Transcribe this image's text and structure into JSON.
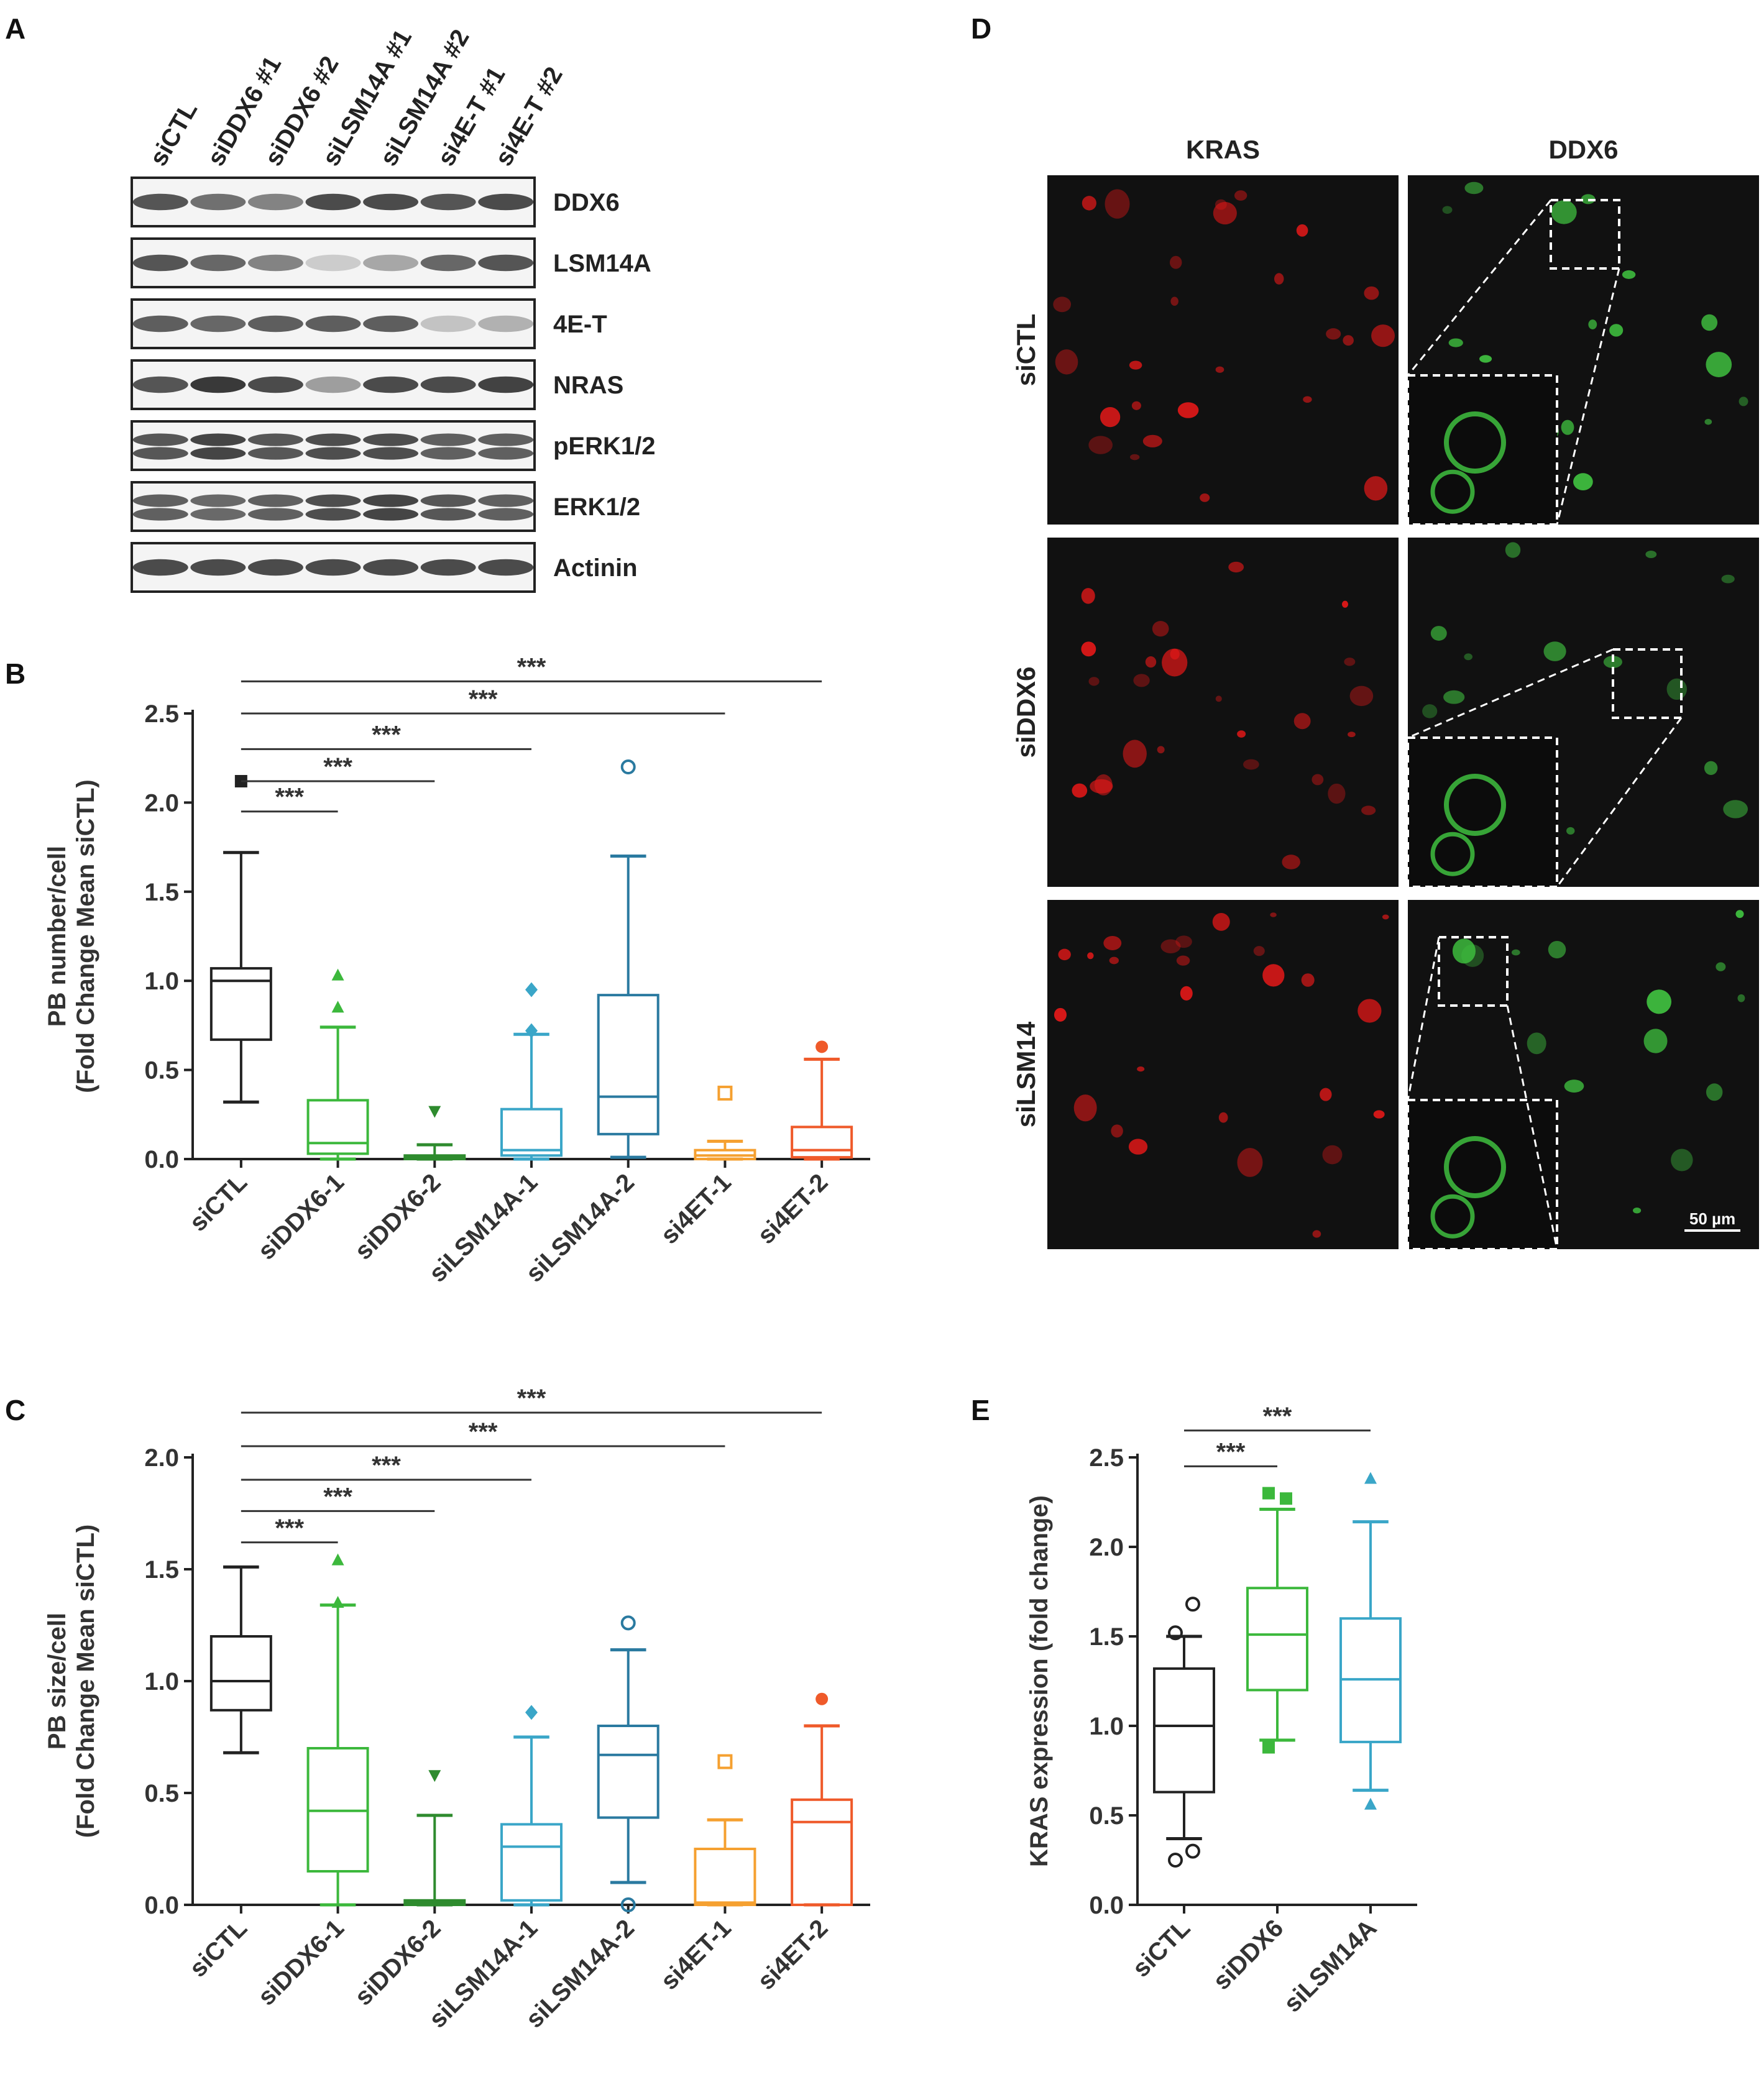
{
  "panels": {
    "A": "A",
    "B": "B",
    "C": "C",
    "D": "D",
    "E": "E"
  },
  "western_blot": {
    "lanes": [
      "siCTL",
      "siDDX6 #1",
      "siDDX6 #2",
      "siLSM14A #1",
      "siLSM14A #2",
      "si4E-T #1",
      "si4E-T #2"
    ],
    "rows": [
      {
        "label": "DDX6",
        "intensity": [
          0.8,
          0.65,
          0.55,
          0.85,
          0.85,
          0.8,
          0.85
        ]
      },
      {
        "label": "LSM14A",
        "intensity": [
          0.8,
          0.7,
          0.55,
          0.15,
          0.35,
          0.7,
          0.8
        ]
      },
      {
        "label": "4E-T",
        "intensity": [
          0.75,
          0.7,
          0.75,
          0.75,
          0.75,
          0.2,
          0.3
        ]
      },
      {
        "label": "NRAS",
        "intensity": [
          0.8,
          0.95,
          0.85,
          0.4,
          0.85,
          0.85,
          0.9
        ]
      },
      {
        "label": "pERK1/2",
        "intensity": [
          0.8,
          0.9,
          0.8,
          0.85,
          0.85,
          0.75,
          0.75
        ]
      },
      {
        "label": "ERK1/2",
        "intensity": [
          0.75,
          0.7,
          0.75,
          0.85,
          0.9,
          0.8,
          0.75
        ]
      },
      {
        "label": "Actinin",
        "intensity": [
          0.85,
          0.85,
          0.85,
          0.85,
          0.85,
          0.85,
          0.85
        ]
      }
    ]
  },
  "micrographs": {
    "columns": [
      "KRAS",
      "DDX6"
    ],
    "rows": [
      "siCTL",
      "siDDX6",
      "siLSM14"
    ],
    "scale_bar": "50 µm",
    "colors": {
      "kras": "#e01818",
      "ddx6": "#3fbf3f",
      "bg": "#111111"
    }
  },
  "chart_data": [
    {
      "type": "box",
      "panel": "B",
      "ylabel_line1": "PB number/cell",
      "ylabel_line2": "(Fold Change Mean siCTL)",
      "ylim": [
        0,
        2.5
      ],
      "yticks": [
        "0.0",
        "0.5",
        "1.0",
        "1.5",
        "2.0",
        "2.5"
      ],
      "categories": [
        "siCTL",
        "siDDX6-1",
        "siDDX6-2",
        "siLSM14A-1",
        "siLSM14A-2",
        "si4ET-1",
        "si4ET-2"
      ],
      "colors": [
        "#222222",
        "#3cb83c",
        "#2e8b2e",
        "#3aa6c8",
        "#2a7aa0",
        "#f5a030",
        "#ef5a2a"
      ],
      "boxes": [
        {
          "min": 0.32,
          "q1": 0.67,
          "median": 1.0,
          "q3": 1.07,
          "max": 1.72,
          "outliers": [
            2.12
          ],
          "marker": "square"
        },
        {
          "min": 0.0,
          "q1": 0.03,
          "median": 0.09,
          "q3": 0.33,
          "max": 0.74,
          "outliers": [
            0.85,
            1.03
          ],
          "marker": "triangle"
        },
        {
          "min": 0.0,
          "q1": 0.0,
          "median": 0.01,
          "q3": 0.02,
          "max": 0.08,
          "outliers": [
            0.27
          ],
          "marker": "tri-down"
        },
        {
          "min": 0.0,
          "q1": 0.02,
          "median": 0.05,
          "q3": 0.28,
          "max": 0.7,
          "outliers": [
            0.72,
            0.95
          ],
          "marker": "diamond"
        },
        {
          "min": 0.01,
          "q1": 0.14,
          "median": 0.35,
          "q3": 0.92,
          "max": 1.7,
          "outliers": [
            2.2
          ],
          "marker": "circle"
        },
        {
          "min": 0.0,
          "q1": 0.0,
          "median": 0.02,
          "q3": 0.05,
          "max": 0.1,
          "outliers": [
            0.37
          ],
          "marker": "open-square"
        },
        {
          "min": 0.0,
          "q1": 0.01,
          "median": 0.05,
          "q3": 0.18,
          "max": 0.56,
          "outliers": [
            0.63
          ],
          "marker": "hexagon"
        }
      ],
      "significance": [
        {
          "from": 0,
          "to": 1,
          "label": "***",
          "y": 1.95
        },
        {
          "from": 0,
          "to": 2,
          "label": "***",
          "y": 2.12
        },
        {
          "from": 0,
          "to": 3,
          "label": "***",
          "y": 2.3
        },
        {
          "from": 0,
          "to": 5,
          "label": "***",
          "y": 2.5
        },
        {
          "from": 0,
          "to": 6,
          "label": "***",
          "y": 2.68
        }
      ]
    },
    {
      "type": "box",
      "panel": "C",
      "ylabel_line1": "PB size/cell",
      "ylabel_line2": "(Fold Change Mean siCTL)",
      "ylim": [
        0,
        2.0
      ],
      "yticks": [
        "0.0",
        "0.5",
        "1.0",
        "1.5",
        "2.0"
      ],
      "categories": [
        "siCTL",
        "siDDX6-1",
        "siDDX6-2",
        "siLSM14A-1",
        "siLSM14A-2",
        "si4ET-1",
        "si4ET-2"
      ],
      "colors": [
        "#222222",
        "#3cb83c",
        "#2e8b2e",
        "#3aa6c8",
        "#2a7aa0",
        "#f5a030",
        "#ef5a2a"
      ],
      "boxes": [
        {
          "min": 0.68,
          "q1": 0.87,
          "median": 1.0,
          "q3": 1.2,
          "max": 1.51,
          "outliers": [],
          "marker": "square"
        },
        {
          "min": 0.0,
          "q1": 0.15,
          "median": 0.42,
          "q3": 0.7,
          "max": 1.34,
          "outliers": [
            1.35,
            1.54
          ],
          "marker": "triangle"
        },
        {
          "min": 0.0,
          "q1": 0.0,
          "median": 0.01,
          "q3": 0.02,
          "max": 0.4,
          "outliers": [
            0.58
          ],
          "marker": "tri-down"
        },
        {
          "min": 0.0,
          "q1": 0.02,
          "median": 0.26,
          "q3": 0.36,
          "max": 0.75,
          "outliers": [
            0.86
          ],
          "marker": "diamond"
        },
        {
          "min": 0.1,
          "q1": 0.39,
          "median": 0.67,
          "q3": 0.8,
          "max": 1.14,
          "outliers": [
            0.0,
            1.26
          ],
          "marker": "circle"
        },
        {
          "min": 0.0,
          "q1": 0.0,
          "median": 0.01,
          "q3": 0.25,
          "max": 0.38,
          "outliers": [
            0.64
          ],
          "marker": "open-square"
        },
        {
          "min": 0.0,
          "q1": 0.0,
          "median": 0.37,
          "q3": 0.47,
          "max": 0.8,
          "outliers": [
            0.92
          ],
          "marker": "hexagon"
        }
      ],
      "significance": [
        {
          "from": 0,
          "to": 1,
          "label": "***",
          "y": 1.62
        },
        {
          "from": 0,
          "to": 2,
          "label": "***",
          "y": 1.76
        },
        {
          "from": 0,
          "to": 3,
          "label": "***",
          "y": 1.9
        },
        {
          "from": 0,
          "to": 5,
          "label": "***",
          "y": 2.05
        },
        {
          "from": 0,
          "to": 6,
          "label": "***",
          "y": 2.2
        }
      ]
    },
    {
      "type": "box",
      "panel": "E",
      "ylabel_line1": "KRAS expression (fold change)",
      "ylabel_line2": "",
      "ylim": [
        0,
        2.5
      ],
      "yticks": [
        "0.0",
        "0.5",
        "1.0",
        "1.5",
        "2.0",
        "2.5"
      ],
      "categories": [
        "siCTL",
        "siDDX6",
        "siLSM14A"
      ],
      "colors": [
        "#222222",
        "#3cb83c",
        "#3aa6c8"
      ],
      "boxes": [
        {
          "min": 0.37,
          "q1": 0.63,
          "median": 1.0,
          "q3": 1.32,
          "max": 1.5,
          "outliers": [
            0.25,
            0.3,
            1.52,
            1.68
          ],
          "marker": "circle"
        },
        {
          "min": 0.92,
          "q1": 1.2,
          "median": 1.51,
          "q3": 1.77,
          "max": 2.21,
          "outliers": [
            0.88,
            2.27,
            2.3
          ],
          "marker": "square"
        },
        {
          "min": 0.64,
          "q1": 0.91,
          "median": 1.26,
          "q3": 1.6,
          "max": 2.14,
          "outliers": [
            0.56,
            2.38
          ],
          "marker": "triangle"
        }
      ],
      "significance": [
        {
          "from": 0,
          "to": 1,
          "label": "***",
          "y": 2.45
        },
        {
          "from": 0,
          "to": 2,
          "label": "***",
          "y": 2.65
        }
      ]
    }
  ]
}
